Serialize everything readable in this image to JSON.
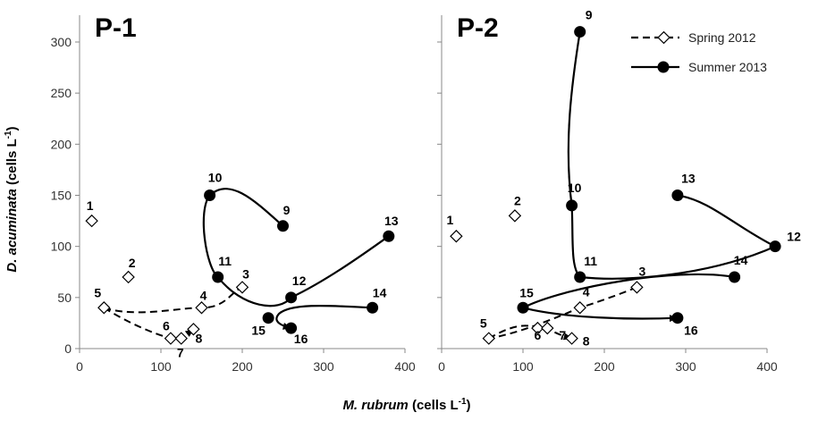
{
  "chart_data": {
    "type": "scatter",
    "xlabel": {
      "species": "M. rubrum",
      "unit_pre": " (cells L",
      "unit_sup": "-1",
      "unit_post": ")"
    },
    "ylabel": {
      "species": "D. acuminata",
      "unit_pre": " (cells L",
      "unit_sup": "-1",
      "unit_post": ")"
    },
    "legend": {
      "position": "top-right",
      "entries": [
        {
          "name": "Spring 2012",
          "line": "dashed",
          "marker": "open-diamond"
        },
        {
          "name": "Summer 2013",
          "line": "solid",
          "marker": "filled-circle"
        }
      ]
    },
    "grid": false,
    "panels": [
      {
        "title": "P-1",
        "xlim": [
          0,
          400
        ],
        "ylim": [
          0,
          300
        ],
        "xticks": [
          "0",
          "100",
          "200",
          "300",
          "400"
        ],
        "yticks": [
          "0",
          "50",
          "100",
          "150",
          "200",
          "250",
          "300"
        ],
        "series": [
          {
            "name": "Spring 2012",
            "points": [
              {
                "label": "1",
                "x": 15,
                "y": 125
              },
              {
                "label": "2",
                "x": 60,
                "y": 70
              },
              {
                "label": "3",
                "x": 200,
                "y": 60
              },
              {
                "label": "4",
                "x": 150,
                "y": 40
              },
              {
                "label": "5",
                "x": 30,
                "y": 40
              },
              {
                "label": "6",
                "x": 112,
                "y": 10
              },
              {
                "label": "7",
                "x": 125,
                "y": 10
              },
              {
                "label": "8",
                "x": 140,
                "y": 19
              }
            ]
          },
          {
            "name": "Summer 2013",
            "points": [
              {
                "label": "9",
                "x": 250,
                "y": 120
              },
              {
                "label": "10",
                "x": 160,
                "y": 150
              },
              {
                "label": "11",
                "x": 170,
                "y": 70
              },
              {
                "label": "12",
                "x": 260,
                "y": 50
              },
              {
                "label": "13",
                "x": 380,
                "y": 110
              },
              {
                "label": "14",
                "x": 360,
                "y": 40
              },
              {
                "label": "15",
                "x": 232,
                "y": 30
              },
              {
                "label": "16",
                "x": 260,
                "y": 20
              }
            ]
          }
        ]
      },
      {
        "title": "P-2",
        "xlim": [
          0,
          400
        ],
        "ylim": [
          0,
          300
        ],
        "xticks": [
          "0",
          "100",
          "200",
          "300",
          "400"
        ],
        "yticks": [
          "0",
          "50",
          "100",
          "150",
          "200",
          "250",
          "300"
        ],
        "series": [
          {
            "name": "Spring 2012",
            "points": [
              {
                "label": "1",
                "x": 18,
                "y": 110
              },
              {
                "label": "2",
                "x": 90,
                "y": 130
              },
              {
                "label": "3",
                "x": 240,
                "y": 60
              },
              {
                "label": "4",
                "x": 170,
                "y": 40
              },
              {
                "label": "5",
                "x": 58,
                "y": 10
              },
              {
                "label": "6",
                "x": 118,
                "y": 20
              },
              {
                "label": "7",
                "x": 130,
                "y": 20
              },
              {
                "label": "8",
                "x": 160,
                "y": 10
              }
            ]
          },
          {
            "name": "Summer 2013",
            "points": [
              {
                "label": "9",
                "x": 170,
                "y": 310
              },
              {
                "label": "10",
                "x": 160,
                "y": 140
              },
              {
                "label": "11",
                "x": 170,
                "y": 70
              },
              {
                "label": "12",
                "x": 410,
                "y": 100
              },
              {
                "label": "13",
                "x": 290,
                "y": 150
              },
              {
                "label": "14",
                "x": 360,
                "y": 70
              },
              {
                "label": "15",
                "x": 100,
                "y": 40
              },
              {
                "label": "16",
                "x": 290,
                "y": 30
              }
            ]
          }
        ]
      }
    ]
  }
}
